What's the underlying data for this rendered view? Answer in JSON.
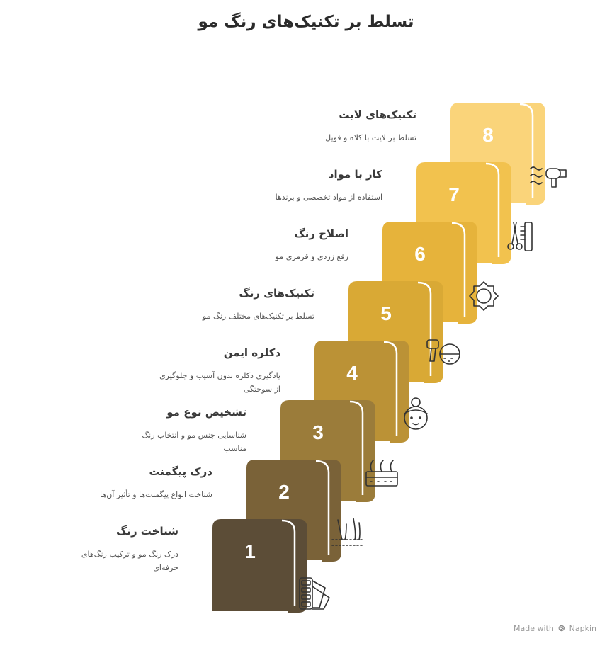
{
  "title": "تسلط بر تکنیک‌های رنگ مو",
  "steps": [
    {
      "number": "1",
      "title": "شناخت رنگ",
      "desc": "درک رنگ مو و ترکیب رنگ‌های حرفه‌ای",
      "color": "#5c4d37",
      "icon": "color-swatch-icon"
    },
    {
      "number": "2",
      "title": "درک پیگمنت",
      "desc": "شناخت انواع پیگمنت‌ها و تأثیر آن‌ها",
      "color": "#7a6238",
      "icon": "hair-follicle-icon"
    },
    {
      "number": "3",
      "title": "تشخیص نوع مو",
      "desc": "شناسایی جنس مو و انتخاب رنگ مناسب",
      "color": "#9b7c3a",
      "icon": "scalp-hair-icon"
    },
    {
      "number": "4",
      "title": "دکلره ایمن",
      "desc": "یادگیری دکلره بدون آسیب و جلوگیری از سوختگی",
      "color": "#bb9236",
      "icon": "woman-face-icon"
    },
    {
      "number": "5",
      "title": "تکنیک‌های رنگ",
      "desc": "تسلط بر تکنیک‌های مختلف رنگ مو",
      "color": "#d9a935",
      "icon": "hair-dryer-icon"
    },
    {
      "number": "6",
      "title": "اصلاح رنگ",
      "desc": "رفع زردی و قرمزی مو",
      "color": "#e6b33b",
      "icon": "sun-icon"
    },
    {
      "number": "7",
      "title": "کار با مواد",
      "desc": "استفاده از مواد تخصصی و برندها",
      "color": "#f2c24e",
      "icon": "scissors-comb-icon"
    },
    {
      "number": "8",
      "title": "تکنیک‌های لایت",
      "desc": "تسلط بر لایت با کلاه و فویل",
      "color": "#fad47a",
      "icon": "hair-dryer-waves-icon"
    }
  ],
  "footer": {
    "made_with": "Made with",
    "brand": "Napkin"
  }
}
